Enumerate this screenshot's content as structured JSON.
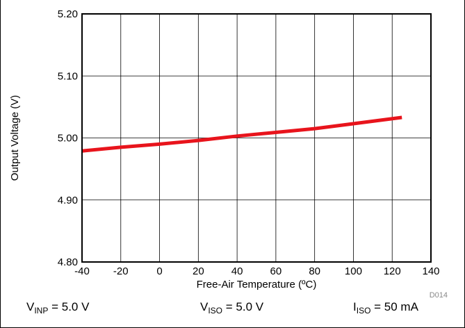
{
  "chart_data": {
    "type": "line",
    "title": "",
    "xlabel": "Free-Air Temperature (ºC)",
    "ylabel": "Output Voltage (V)",
    "xlim": [
      -40,
      140
    ],
    "ylim": [
      4.8,
      5.2
    ],
    "x_ticks": [
      -40,
      -20,
      0,
      20,
      40,
      60,
      80,
      100,
      120,
      140
    ],
    "x_tick_labels": [
      "-40",
      "-20",
      "0",
      "20",
      "40",
      "60",
      "80",
      "100",
      "120",
      "140"
    ],
    "y_ticks": [
      4.8,
      4.9,
      5.0,
      5.1,
      5.2
    ],
    "y_tick_labels": [
      "4.80",
      "4.90",
      "5.00",
      "5.10",
      "5.20"
    ],
    "grid": true,
    "legend": "none",
    "series": [
      {
        "color": "#e8141c",
        "x": [
          -40,
          -20,
          0,
          20,
          40,
          60,
          80,
          100,
          125
        ],
        "y": [
          4.979,
          4.985,
          4.99,
          4.996,
          5.003,
          5.009,
          5.015,
          5.023,
          5.033
        ]
      }
    ],
    "figure_id": "D014"
  },
  "conditions": {
    "vinp": {
      "symbol": "V",
      "sub": "INP",
      "value": " = 5.0 V"
    },
    "viso": {
      "symbol": "V",
      "sub": "ISO",
      "value": " = 5.0 V"
    },
    "iiso": {
      "symbol": "I",
      "sub": "ISO",
      "value": " = 50 mA"
    }
  }
}
